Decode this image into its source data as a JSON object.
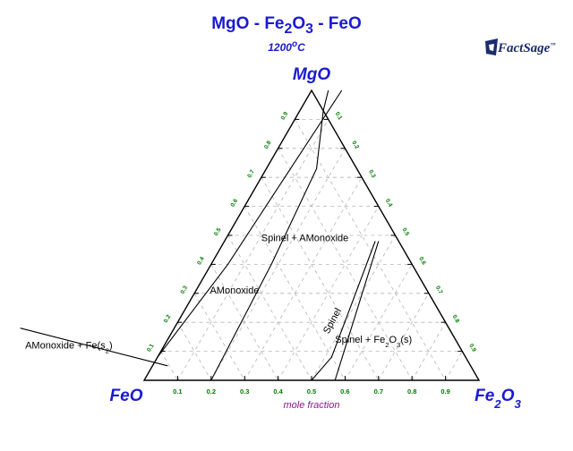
{
  "chart_data": {
    "type": "ternary",
    "title": "MgO - Fe2O3 - FeO",
    "subtitle": "1200°C",
    "axis_title": "mole fraction",
    "corners": {
      "top": "MgO",
      "left": "FeO",
      "right": "Fe2O3"
    },
    "tick_values": [
      "0.1",
      "0.2",
      "0.3",
      "0.4",
      "0.5",
      "0.6",
      "0.7",
      "0.8",
      "0.9"
    ],
    "grid": true,
    "phase_boundaries": [
      {
        "name": "boundary-1",
        "points": [
          {
            "Fe2O3": 0.0,
            "MgO": 0.08
          },
          {
            "Fe2O3": 0.05,
            "MgO": 0.4
          },
          {
            "Fe2O3": 0.09,
            "MgO": 1.0
          }
        ]
      },
      {
        "name": "boundary-2",
        "points": [
          {
            "Fe2O3": 0.2,
            "MgO": 0.0
          },
          {
            "Fe2O3": 0.18,
            "MgO": 0.4
          },
          {
            "Fe2O3": 0.15,
            "MgO": 0.73
          },
          {
            "Fe2O3": 0.07,
            "MgO": 0.93
          },
          {
            "Fe2O3": 0.05,
            "MgO": 1.0
          }
        ]
      },
      {
        "name": "boundary-3",
        "points": [
          {
            "Fe2O3": 0.5,
            "MgO": 0.0
          },
          {
            "Fe2O3": 0.52,
            "MgO": 0.08
          },
          {
            "Fe2O3": 0.45,
            "MgO": 0.48
          }
        ]
      },
      {
        "name": "boundary-4",
        "points": [
          {
            "Fe2O3": 0.57,
            "MgO": 0.0
          },
          {
            "Fe2O3": 0.46,
            "MgO": 0.48
          }
        ]
      },
      {
        "name": "leader-line",
        "points": [
          {
            "Fe2O3": 0.045,
            "MgO": 0.05
          },
          {
            "Fe2O3": -0.46,
            "MgO": 0.18
          }
        ]
      }
    ],
    "regions": [
      {
        "label": "AMonoxide",
        "Fe2O3": 0.12,
        "MgO": 0.3
      },
      {
        "label": "Spinel + AMonoxide",
        "Fe2O3": 0.24,
        "MgO": 0.48
      },
      {
        "label": "Spinel",
        "Fe2O3": 0.47,
        "MgO": 0.2,
        "rotate": -62
      },
      {
        "label": "AMonoxide + Fe(s2)",
        "Fe2O3": -0.28,
        "MgO": 0.11
      },
      {
        "label": "Spinel + Fe2O3(s)",
        "Fe2O3": 0.62,
        "MgO": 0.13
      }
    ]
  }
}
